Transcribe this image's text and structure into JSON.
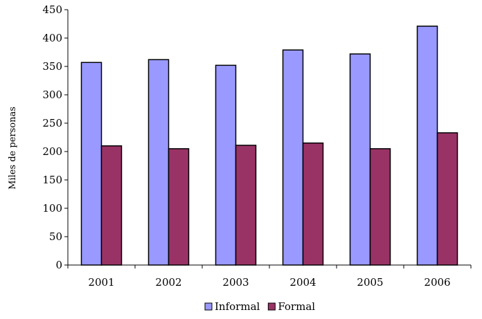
{
  "chart_data": {
    "type": "bar",
    "title": "",
    "xlabel": "",
    "ylabel": "Miles de personas",
    "ylim": [
      0,
      450
    ],
    "yticks": [
      0,
      50,
      100,
      150,
      200,
      250,
      300,
      350,
      400,
      450
    ],
    "grid": false,
    "legend_position": "bottom",
    "categories": [
      "2001",
      "2002",
      "2003",
      "2004",
      "2005",
      "2006"
    ],
    "series": [
      {
        "name": "Informal",
        "color": "#9999ff",
        "values": [
          357,
          362,
          352,
          379,
          372,
          421
        ]
      },
      {
        "name": "Formal",
        "color": "#993366",
        "values": [
          210,
          205,
          211,
          215,
          205,
          233
        ]
      }
    ]
  }
}
